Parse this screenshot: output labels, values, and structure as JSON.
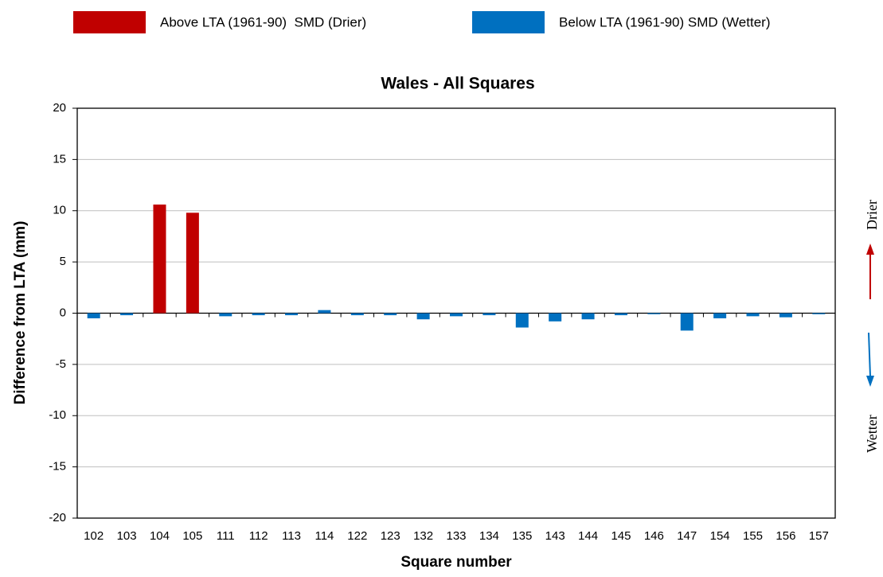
{
  "chart_data": {
    "type": "bar",
    "title": "Wales - All Squares",
    "x_label": "Square number",
    "y_label": "Difference from LTA (mm)",
    "categories": [
      "102",
      "103",
      "104",
      "105",
      "111",
      "112",
      "113",
      "114",
      "122",
      "123",
      "132",
      "133",
      "134",
      "135",
      "143",
      "144",
      "145",
      "146",
      "147",
      "154",
      "155",
      "156",
      "157"
    ],
    "series": [
      {
        "name": "Above LTA (1961-90)  SMD (Drier)",
        "color": "#c00000",
        "values": [
          null,
          null,
          10.6,
          9.8,
          null,
          null,
          null,
          null,
          null,
          null,
          null,
          null,
          null,
          null,
          null,
          null,
          null,
          null,
          null,
          null,
          null,
          null,
          null
        ]
      },
      {
        "name": "Below LTA (1961-90) SMD (Wetter)",
        "color": "#0070c0",
        "values": [
          -0.5,
          -0.2,
          null,
          null,
          -0.3,
          -0.2,
          -0.2,
          0.3,
          -0.2,
          -0.2,
          -0.6,
          -0.3,
          -0.2,
          -1.4,
          -0.8,
          -0.6,
          -0.2,
          -0.1,
          -1.7,
          -0.5,
          -0.3,
          -0.4,
          -0.1
        ]
      }
    ],
    "ylim": [
      -20,
      20
    ],
    "yticks": [
      -20,
      -15,
      -10,
      -5,
      0,
      5,
      10,
      15,
      20
    ],
    "grid": true,
    "annotations": [
      "Drier",
      "Wetter"
    ]
  }
}
